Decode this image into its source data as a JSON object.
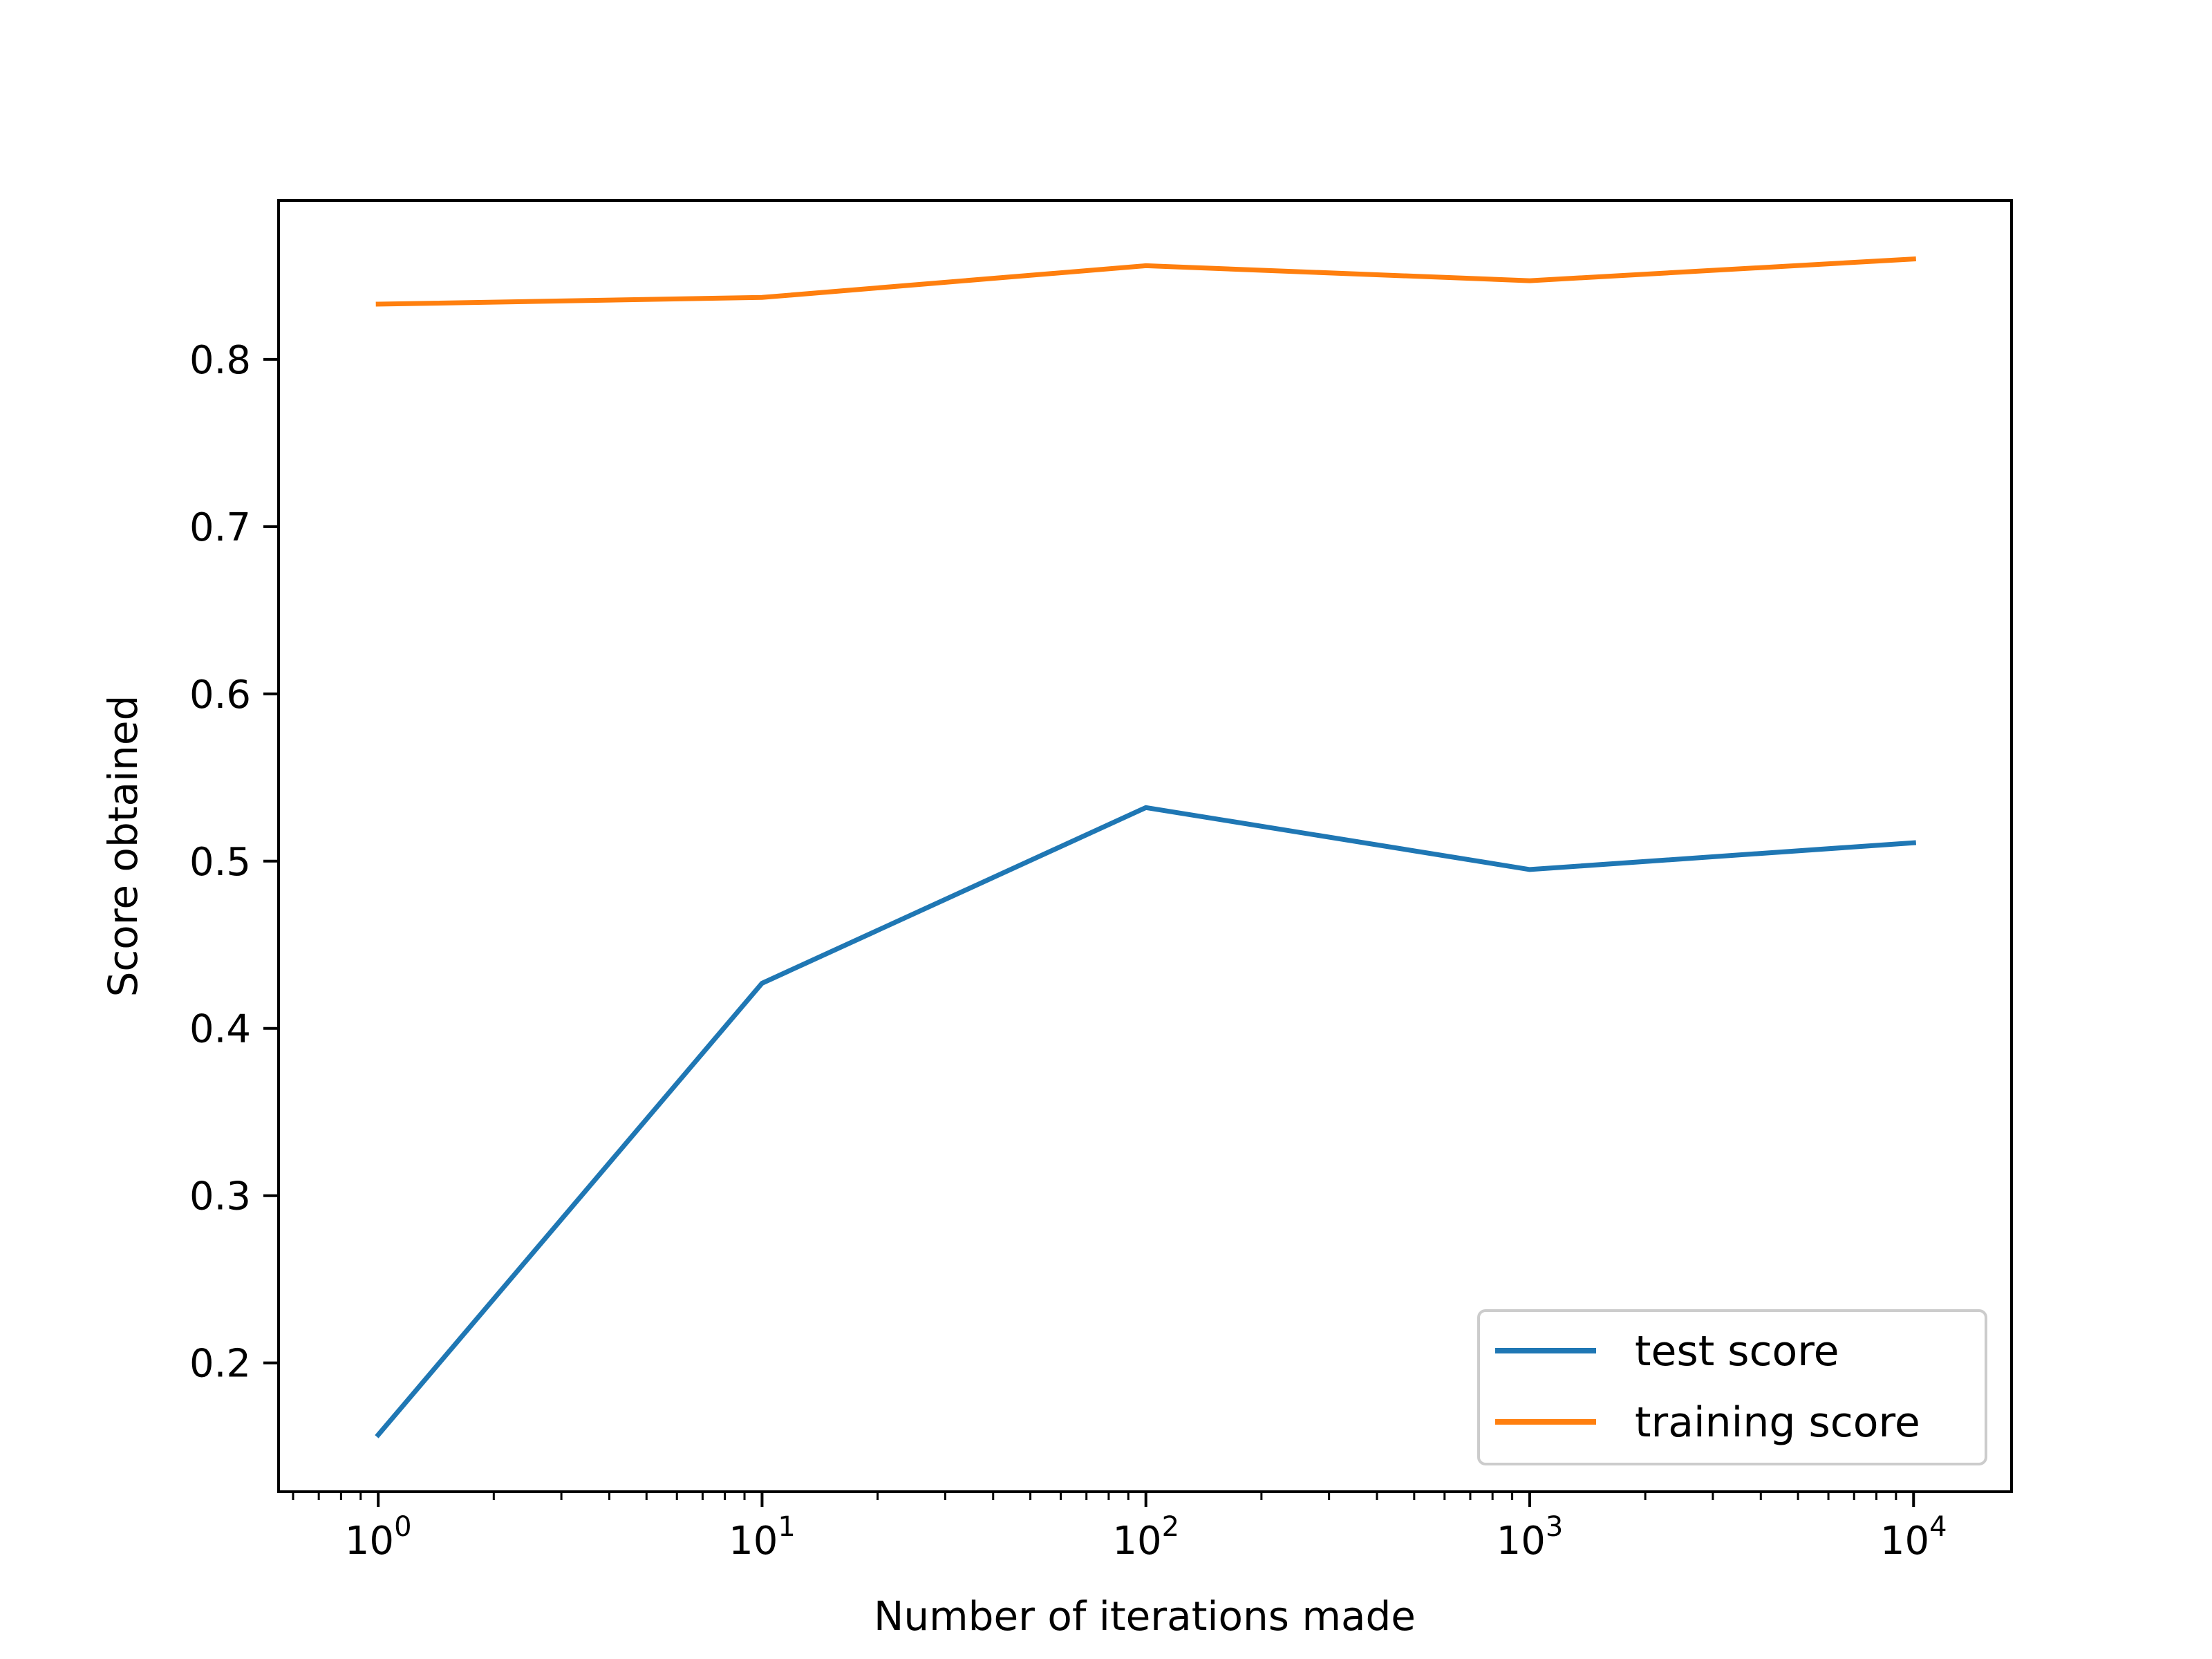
{
  "chart_data": {
    "type": "line",
    "xscale": "log",
    "x": [
      1,
      10,
      100,
      1000,
      10000
    ],
    "series": [
      {
        "name": "test score",
        "color": "#1f77b4",
        "values": [
          0.157,
          0.427,
          0.532,
          0.495,
          0.511
        ]
      },
      {
        "name": "training score",
        "color": "#ff7f0e",
        "values": [
          0.833,
          0.837,
          0.856,
          0.847,
          0.86
        ]
      }
    ],
    "xlabel": "Number of iterations made",
    "ylabel": "Score obtained",
    "xlim": [
      0.55,
      18000
    ],
    "ylim": [
      0.123,
      0.895
    ],
    "xticks": [
      {
        "value": 1,
        "base": "10",
        "exp": "0"
      },
      {
        "value": 10,
        "base": "10",
        "exp": "1"
      },
      {
        "value": 100,
        "base": "10",
        "exp": "2"
      },
      {
        "value": 1000,
        "base": "10",
        "exp": "3"
      },
      {
        "value": 10000,
        "base": "10",
        "exp": "4"
      }
    ],
    "yticks": [
      {
        "value": 0.2,
        "label": "0.2"
      },
      {
        "value": 0.3,
        "label": "0.3"
      },
      {
        "value": 0.4,
        "label": "0.4"
      },
      {
        "value": 0.5,
        "label": "0.5"
      },
      {
        "value": 0.6,
        "label": "0.6"
      },
      {
        "value": 0.7,
        "label": "0.7"
      },
      {
        "value": 0.8,
        "label": "0.8"
      }
    ],
    "legend_position": "lower-right",
    "grid": false
  }
}
